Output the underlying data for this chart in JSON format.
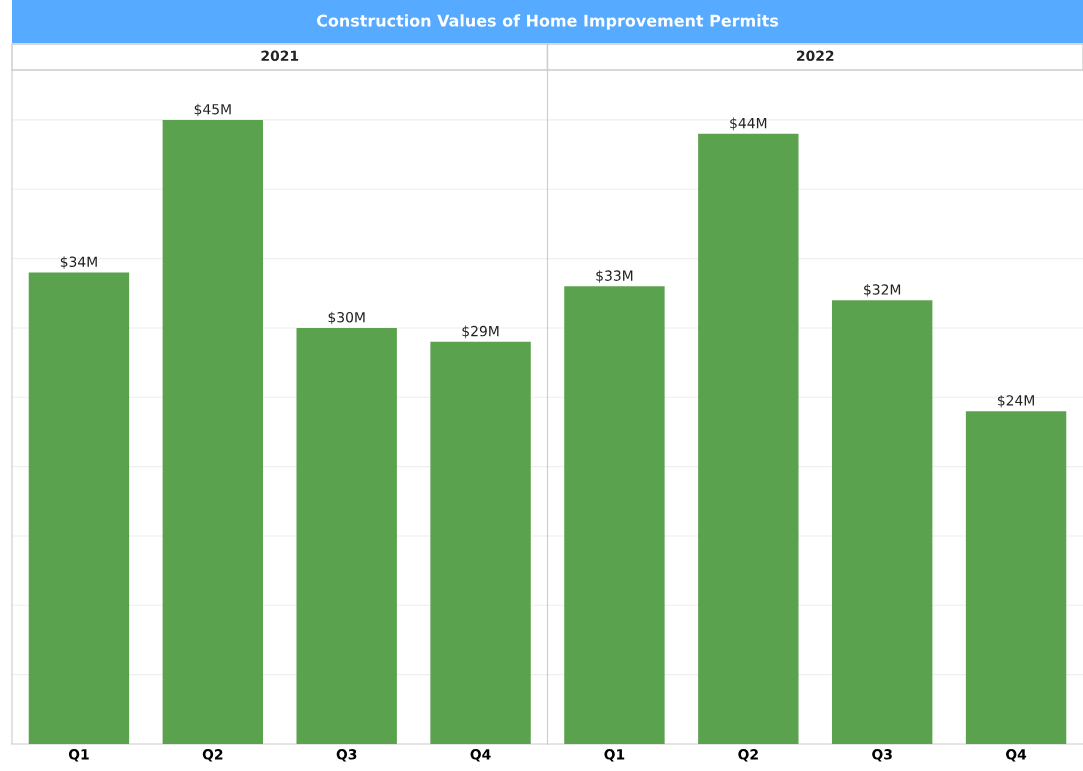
{
  "chart_data": [
    {
      "type": "bar",
      "title": "2021",
      "annotations": [
        "Construction Values of Home Improvement Permits"
      ],
      "categories": [
        "Q1",
        "Q2",
        "Q3",
        "Q4"
      ],
      "values": [
        34,
        45,
        30,
        29
      ],
      "value_labels": [
        "$34M",
        "$45M",
        "$30M",
        "$29M"
      ],
      "color": "#5ba24f",
      "ylim": [
        0,
        48.6
      ],
      "yticks": [
        {
          "value": 5,
          "label": null
        },
        {
          "value": 10,
          "label": null
        },
        {
          "value": 15,
          "label": null
        },
        {
          "value": 20,
          "label": null
        },
        {
          "value": 25,
          "label": null
        },
        {
          "value": 30,
          "label": null
        },
        {
          "value": 35,
          "label": null
        },
        {
          "value": 40,
          "label": null
        },
        {
          "value": 45,
          "label": null
        }
      ],
      "grid": "y",
      "tick_labels": "x"
    },
    {
      "type": "bar",
      "title": "2022",
      "categories": [
        "Q1",
        "Q2",
        "Q3",
        "Q4"
      ],
      "values": [
        33,
        44,
        32,
        24
      ],
      "value_labels": [
        "$33M",
        "$44M",
        "$32M",
        "$24M"
      ],
      "color": "#5ba24f",
      "ylim": [
        0,
        48.6
      ],
      "yticks": [
        {
          "value": 5,
          "label": null
        },
        {
          "value": 10,
          "label": null
        },
        {
          "value": 15,
          "label": null
        },
        {
          "value": 20,
          "label": null
        },
        {
          "value": 25,
          "label": null
        },
        {
          "value": 30,
          "label": null
        },
        {
          "value": 35,
          "label": null
        },
        {
          "value": 40,
          "label": null
        },
        {
          "value": 45,
          "label": null
        }
      ],
      "grid": "y",
      "tick_labels": "x"
    }
  ]
}
